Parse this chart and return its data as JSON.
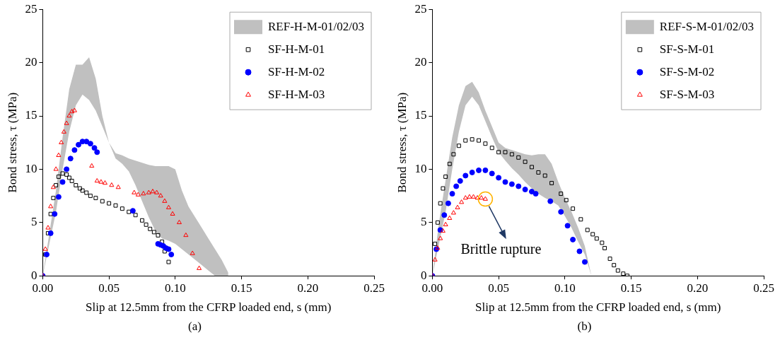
{
  "chart_data": [
    {
      "type": "scatter",
      "xlabel": "Slip at 12.5mm from the CFRP loaded end, s (mm)",
      "ylabel": "Bond stress, τ (MPa)",
      "xlim": [
        0,
        0.25
      ],
      "ylim": [
        0,
        25
      ],
      "xticks": [
        {
          "value": 0,
          "label": "0.00"
        },
        {
          "value": 0.05,
          "label": "0.05"
        },
        {
          "value": 0.1,
          "label": "0.10"
        },
        {
          "value": 0.15,
          "label": "0.15"
        },
        {
          "value": 0.2,
          "label": "0.20"
        },
        {
          "value": 0.25,
          "label": "0.25"
        }
      ],
      "yticks": [
        0,
        5,
        10,
        15,
        20,
        25
      ],
      "legend": "top right",
      "annotations": [
        "(a)"
      ],
      "series": [
        {
          "name": "REF-H-M-01/02/03",
          "type": "area",
          "color": "#c0c0c0",
          "x": [
            0,
            0.005,
            0.01,
            0.015,
            0.02,
            0.025,
            0.03,
            0.035,
            0.04,
            0.045,
            0.05,
            0.055,
            0.06,
            0.065,
            0.07,
            0.075,
            0.08,
            0.085,
            0.09,
            0.095,
            0.1,
            0.105,
            0.11,
            0.115,
            0.12,
            0.125,
            0.13,
            0.135,
            0.14
          ],
          "values": [
            null,
            null,
            null,
            null,
            null,
            null,
            null,
            null,
            null,
            null,
            null,
            null,
            null,
            null,
            null,
            null,
            null,
            null,
            null,
            null,
            null,
            null,
            null,
            null,
            null,
            null,
            null,
            null,
            null
          ],
          "upper": [
            0,
            4,
            8,
            13,
            17.5,
            19.8,
            19.8,
            20.5,
            18.5,
            15,
            12.5,
            11.5,
            11.3,
            11,
            10.8,
            10.6,
            10.4,
            10.3,
            10.3,
            10.3,
            10,
            8,
            6.5,
            5.5,
            4.5,
            3.5,
            2.5,
            1.5,
            0.3
          ],
          "lower": [
            0,
            3,
            6,
            10,
            13.5,
            16,
            17,
            16.5,
            15.5,
            14,
            12.5,
            11,
            10.5,
            9.8,
            8.5,
            7,
            5.5,
            4.2,
            3.5,
            3.3,
            3,
            2.5,
            2,
            1.5,
            1,
            0.5,
            0,
            0,
            0
          ]
        },
        {
          "name": "SF-H-M-01",
          "color": "#000000",
          "marker": "square",
          "x": [
            0,
            0.002,
            0.004,
            0.006,
            0.008,
            0.01,
            0.012,
            0.015,
            0.018,
            0.02,
            0.022,
            0.025,
            0.028,
            0.03,
            0.033,
            0.036,
            0.04,
            0.045,
            0.05,
            0.055,
            0.06,
            0.065,
            0.07,
            0.075,
            0.078,
            0.081,
            0.084,
            0.087,
            0.09,
            0.092,
            0.095
          ],
          "values": [
            0,
            2,
            4,
            5.8,
            7.3,
            8.5,
            9.3,
            9.6,
            9.5,
            9.2,
            8.9,
            8.5,
            8.2,
            8,
            7.8,
            7.5,
            7.3,
            7,
            6.8,
            6.6,
            6.3,
            6,
            5.7,
            5.2,
            4.8,
            4.4,
            4.1,
            3.8,
            3.2,
            2.3,
            1.3
          ]
        },
        {
          "name": "SF-H-M-02",
          "color": "#0000ff",
          "marker": "circle",
          "x": [
            0,
            0.003,
            0.006,
            0.009,
            0.012,
            0.015,
            0.018,
            0.021,
            0.024,
            0.027,
            0.03,
            0.033,
            0.036,
            0.039,
            0.041,
            0.068,
            0.087,
            0.089,
            0.091,
            0.093,
            0.095,
            0.097
          ],
          "values": [
            0,
            2,
            4,
            5.8,
            7.4,
            8.8,
            10,
            11,
            11.8,
            12.3,
            12.6,
            12.6,
            12.4,
            12,
            11.6,
            6.1,
            3,
            2.9,
            2.8,
            2.6,
            2.5,
            2
          ]
        },
        {
          "name": "SF-H-M-03",
          "color": "#ff0000",
          "marker": "triangle",
          "x": [
            0,
            0.002,
            0.004,
            0.006,
            0.008,
            0.01,
            0.012,
            0.014,
            0.016,
            0.018,
            0.02,
            0.022,
            0.024,
            0.037,
            0.041,
            0.044,
            0.047,
            0.052,
            0.057,
            0.069,
            0.072,
            0.076,
            0.08,
            0.083,
            0.086,
            0.089,
            0.092,
            0.095,
            0.098,
            0.103,
            0.108,
            0.113,
            0.118
          ],
          "values": [
            0,
            2.5,
            4.5,
            6.5,
            8.3,
            10,
            11.3,
            12.5,
            13.5,
            14.3,
            15,
            15.4,
            15.5,
            10.3,
            8.9,
            8.8,
            8.7,
            8.5,
            8.3,
            7.8,
            7.6,
            7.7,
            7.8,
            7.9,
            7.8,
            7.5,
            7,
            6.4,
            5.8,
            5,
            3.8,
            2.1,
            0.7
          ]
        }
      ]
    },
    {
      "type": "scatter",
      "xlabel": "Slip at 12.5mm from the CFRP loaded end, s (mm)",
      "ylabel": "Bond stress, τ (MPa)",
      "xlim": [
        0,
        0.25
      ],
      "ylim": [
        0,
        25
      ],
      "xticks": [
        {
          "value": 0,
          "label": "0.00"
        },
        {
          "value": 0.05,
          "label": "0.05"
        },
        {
          "value": 0.1,
          "label": "0.10"
        },
        {
          "value": 0.15,
          "label": "0.15"
        },
        {
          "value": 0.2,
          "label": "0.20"
        },
        {
          "value": 0.25,
          "label": "0.25"
        }
      ],
      "yticks": [
        0,
        5,
        10,
        15,
        20,
        25
      ],
      "legend": "top right",
      "annotations": [
        {
          "text": "Brittle rupture",
          "x": 0.04,
          "y": 7.2
        },
        "(b)"
      ],
      "series": [
        {
          "name": "REF-S-M-01/02/03",
          "type": "area",
          "color": "#c0c0c0",
          "x": [
            0,
            0.005,
            0.01,
            0.015,
            0.02,
            0.025,
            0.03,
            0.035,
            0.04,
            0.045,
            0.05,
            0.055,
            0.06,
            0.065,
            0.07,
            0.075,
            0.08,
            0.085,
            0.09,
            0.095,
            0.1,
            0.105,
            0.11,
            0.115,
            0.12
          ],
          "values": [
            null,
            null,
            null,
            null,
            null,
            null,
            null,
            null,
            null,
            null,
            null,
            null,
            null,
            null,
            null,
            null,
            null,
            null,
            null,
            null,
            null,
            null,
            null,
            null,
            null
          ],
          "upper": [
            0,
            5,
            9,
            13,
            16,
            17.8,
            18.2,
            17.2,
            15.5,
            14,
            12.5,
            12,
            11.8,
            11.6,
            11.4,
            11.3,
            11.4,
            11.4,
            10.5,
            8.8,
            7.3,
            6,
            4.5,
            2.8,
            0
          ],
          "lower": [
            0,
            3,
            6,
            10,
            13.5,
            16,
            16.8,
            16,
            14.5,
            13,
            11.6,
            10.8,
            10.1,
            9.5,
            8.8,
            8.2,
            7.7,
            7.3,
            7,
            6.6,
            5.6,
            4.5,
            3.2,
            2,
            0
          ]
        },
        {
          "name": "SF-S-M-01",
          "color": "#000000",
          "marker": "square",
          "x": [
            0,
            0.002,
            0.004,
            0.006,
            0.008,
            0.01,
            0.013,
            0.016,
            0.02,
            0.025,
            0.03,
            0.035,
            0.04,
            0.045,
            0.05,
            0.055,
            0.06,
            0.065,
            0.07,
            0.075,
            0.08,
            0.085,
            0.09,
            0.097,
            0.101,
            0.106,
            0.112,
            0.117,
            0.121,
            0.124,
            0.128,
            0.13,
            0.134,
            0.137,
            0.14,
            0.144,
            0.147
          ],
          "values": [
            0,
            3,
            5,
            6.8,
            8.2,
            9.3,
            10.5,
            11.4,
            12.2,
            12.7,
            12.8,
            12.7,
            12.4,
            12,
            11.6,
            11.6,
            11.4,
            11.1,
            10.7,
            10.2,
            9.7,
            9.4,
            8.7,
            7.7,
            7.1,
            6.3,
            5.3,
            4.3,
            3.9,
            3.5,
            3.1,
            2.6,
            1.6,
            1,
            0.5,
            0.2,
            0
          ]
        },
        {
          "name": "SF-S-M-02",
          "color": "#0000ff",
          "marker": "circle",
          "x": [
            0,
            0.003,
            0.006,
            0.009,
            0.012,
            0.015,
            0.018,
            0.021,
            0.025,
            0.03,
            0.035,
            0.04,
            0.045,
            0.05,
            0.055,
            0.06,
            0.065,
            0.07,
            0.075,
            0.078,
            0.089,
            0.097,
            0.102,
            0.106,
            0.111,
            0.115
          ],
          "values": [
            0,
            2.5,
            4.3,
            5.7,
            6.8,
            7.7,
            8.4,
            8.9,
            9.4,
            9.7,
            9.9,
            9.9,
            9.6,
            9.2,
            8.8,
            8.6,
            8.4,
            8.1,
            7.9,
            7.7,
            7,
            6,
            4.7,
            3.4,
            2.3,
            1.3
          ]
        },
        {
          "name": "SF-S-M-03",
          "color": "#ff0000",
          "marker": "triangle",
          "x": [
            0,
            0.002,
            0.004,
            0.006,
            0.008,
            0.01,
            0.013,
            0.016,
            0.019,
            0.022,
            0.025,
            0.028,
            0.031,
            0.034,
            0.037,
            0.04
          ],
          "values": [
            0,
            1.5,
            2.6,
            3.5,
            4.2,
            4.8,
            5.4,
            5.9,
            6.4,
            6.9,
            7.3,
            7.4,
            7.4,
            7.3,
            7.3,
            7.2
          ]
        }
      ]
    }
  ]
}
